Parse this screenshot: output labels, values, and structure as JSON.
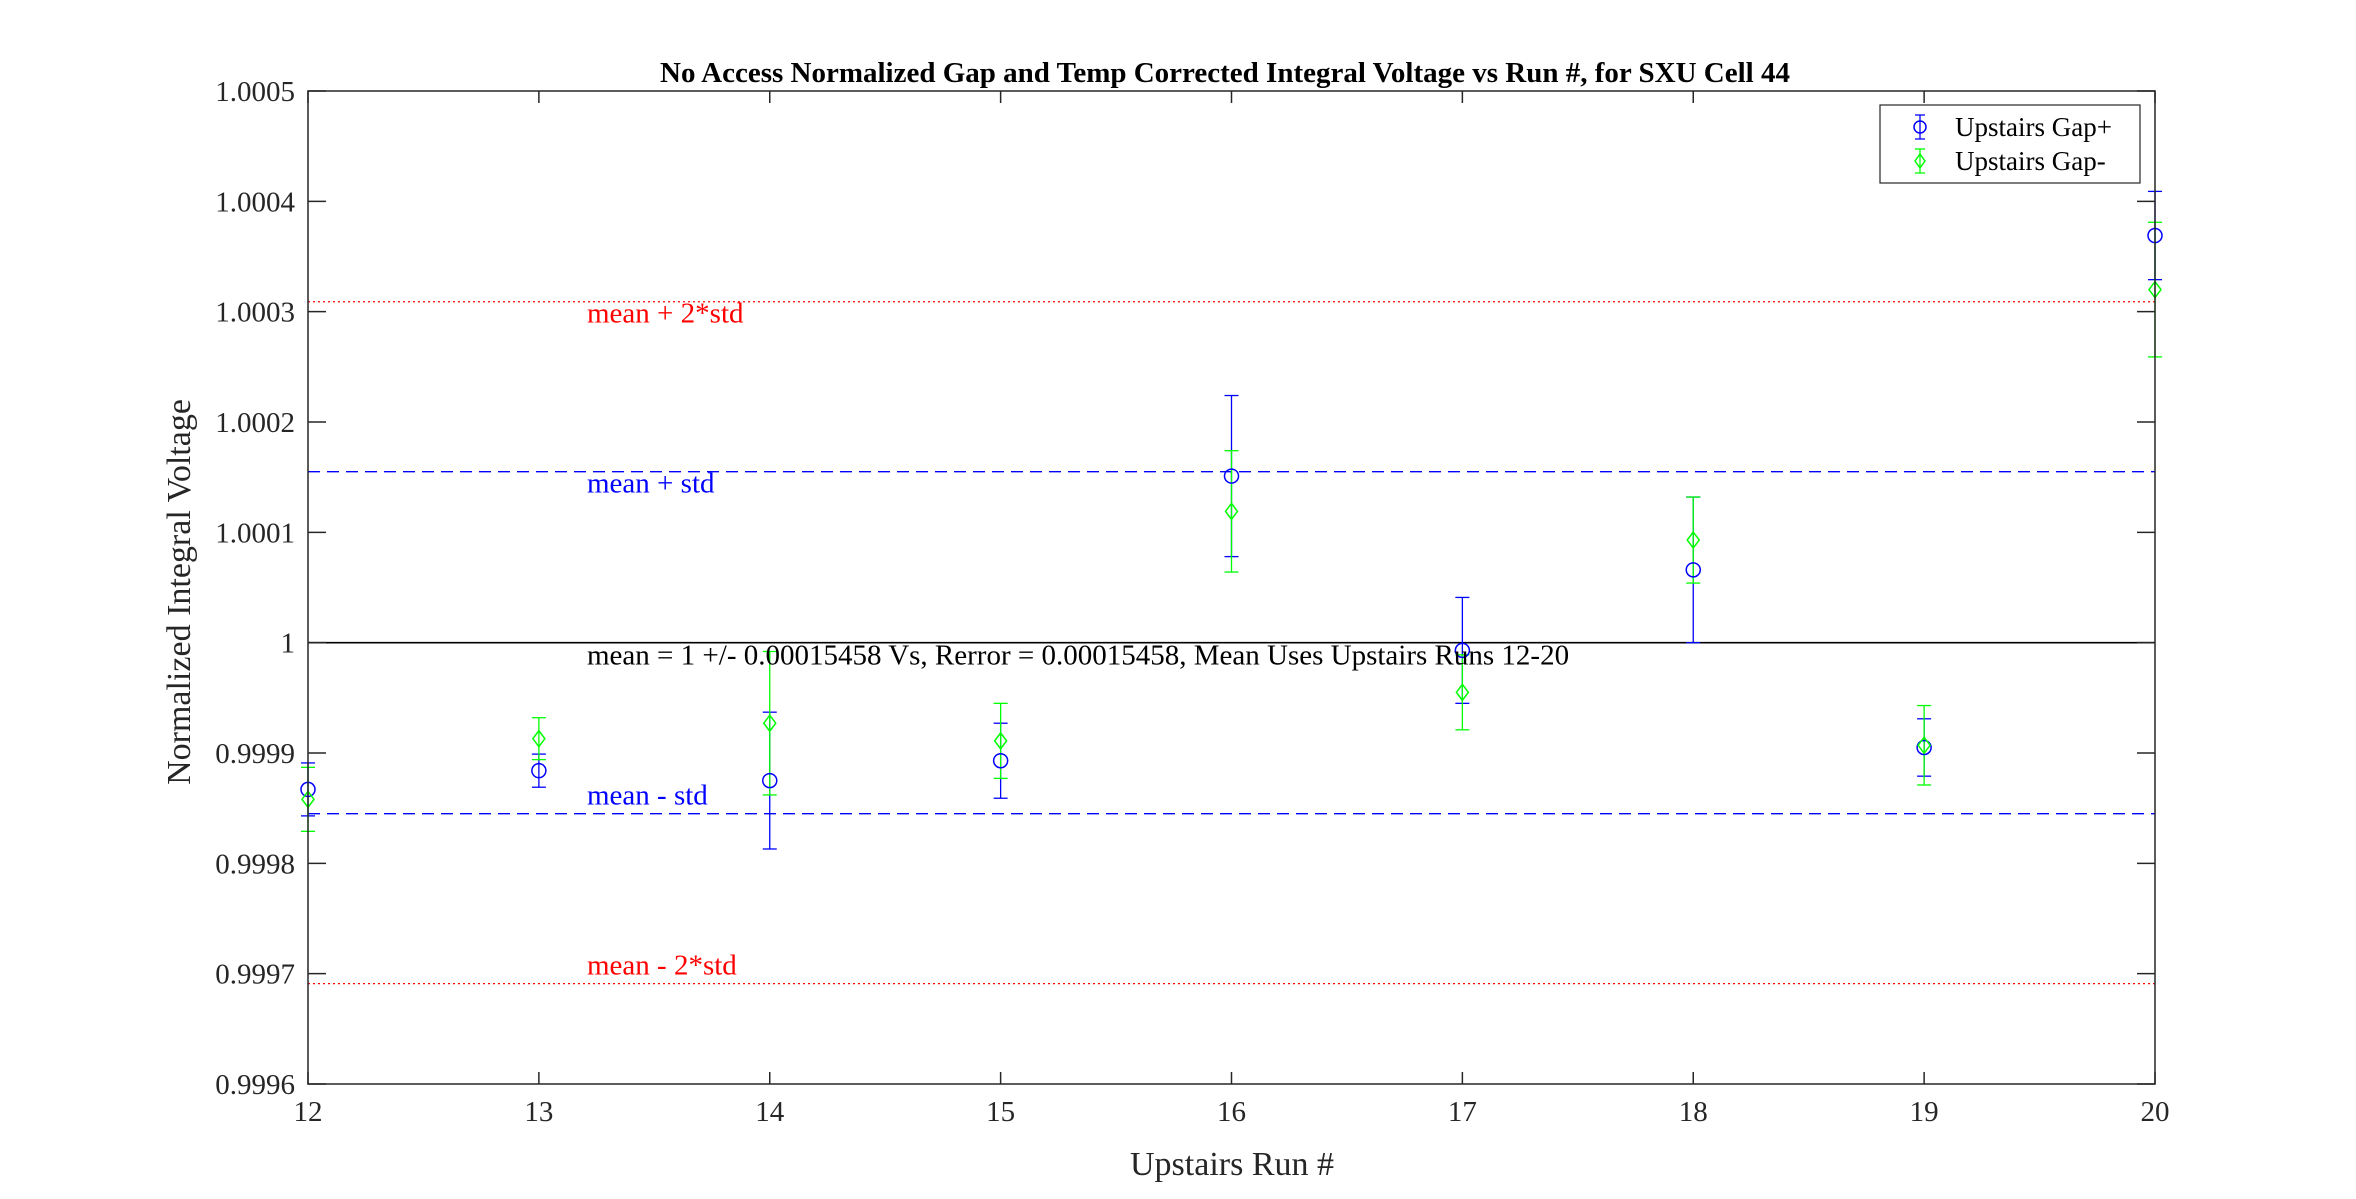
{
  "chart_data": {
    "type": "scatter",
    "title": "No Access Normalized Gap and Temp Corrected Integral Voltage vs Run #, for SXU Cell 44",
    "xlabel": "Upstairs Run #",
    "ylabel": "Normalized Integral Voltage",
    "xlim": [
      12,
      20
    ],
    "ylim": [
      0.9996,
      1.0005
    ],
    "x_ticks": [
      "12",
      "13",
      "14",
      "15",
      "16",
      "17",
      "18",
      "19",
      "20"
    ],
    "y_ticks": [
      "0.9996",
      "0.9997",
      "0.9998",
      "0.9999",
      "1",
      "1.0001",
      "1.0002",
      "1.0003",
      "1.0004",
      "1.0005"
    ],
    "legend_position": "top-right",
    "series": [
      {
        "name": "Upstairs Gap+",
        "color": "#0000ff",
        "marker": "circle",
        "x": [
          12,
          13,
          14,
          15,
          16,
          17,
          18,
          19,
          20
        ],
        "y": [
          0.999867,
          0.999884,
          0.999875,
          0.999893,
          1.000151,
          0.999993,
          1.000066,
          0.999905,
          1.000369
        ],
        "err": [
          2.4e-05,
          1.5e-05,
          6.2e-05,
          3.4e-05,
          7.3e-05,
          4.8e-05,
          6.6e-05,
          2.6e-05,
          4e-05
        ]
      },
      {
        "name": "Upstairs Gap-",
        "color": "#00ff00",
        "marker": "diamond",
        "x": [
          12,
          13,
          14,
          15,
          16,
          17,
          18,
          19,
          20
        ],
        "y": [
          0.999858,
          0.999913,
          0.999927,
          0.999911,
          1.000119,
          0.999955,
          1.000093,
          0.999907,
          1.00032
        ],
        "err": [
          2.9e-05,
          1.9e-05,
          6.5e-05,
          3.4e-05,
          5.5e-05,
          3.4e-05,
          3.9e-05,
          3.6e-05,
          6.1e-05
        ]
      }
    ],
    "reference_lines": [
      {
        "y": 1.000309,
        "style": "dotted",
        "color": "#ff0000",
        "label": "mean + 2*std"
      },
      {
        "y": 1.000155,
        "style": "dashed",
        "color": "#0000ff",
        "label": "mean + std"
      },
      {
        "y": 1.0,
        "style": "solid",
        "color": "#000000",
        "label": "mean = 1 +/- 0.00015458 Vs, Rerror = 0.00015458, Mean Uses Upstairs Runs 12-20"
      },
      {
        "y": 0.999845,
        "style": "dashed",
        "color": "#0000ff",
        "label": "mean - std"
      },
      {
        "y": 0.999691,
        "style": "dotted",
        "color": "#ff0000",
        "label": "mean - 2*std"
      }
    ]
  }
}
